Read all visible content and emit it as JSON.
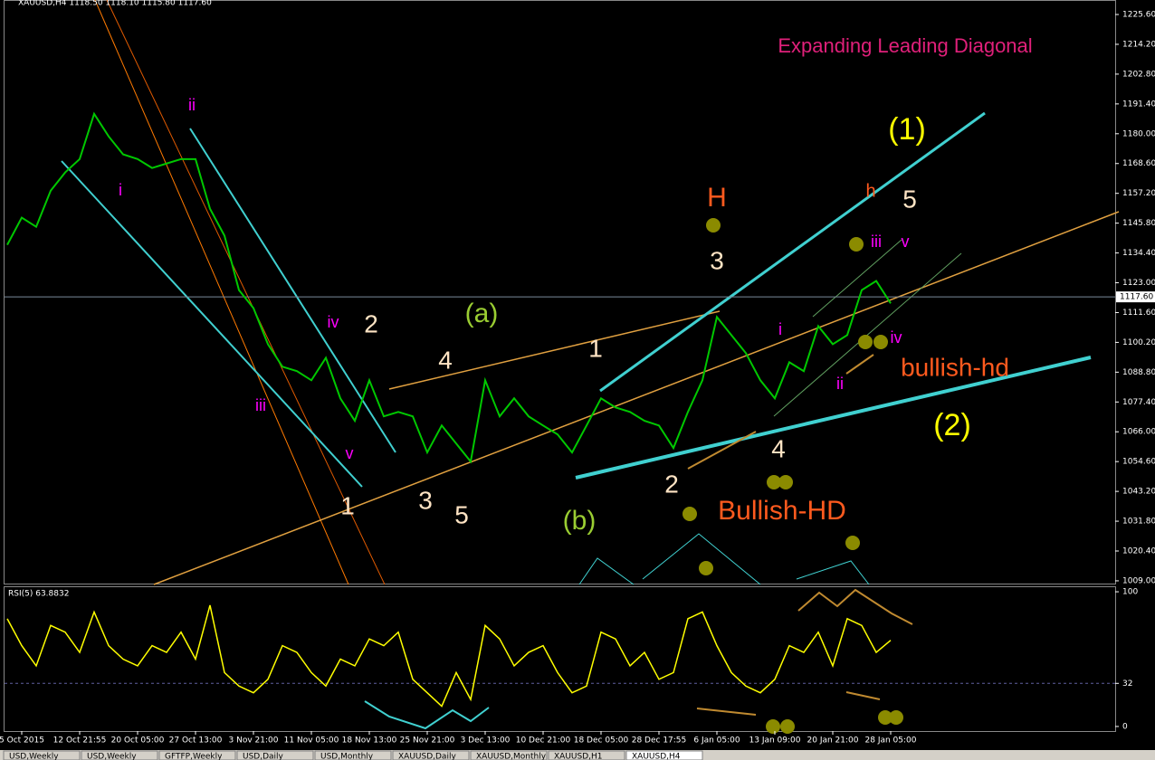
{
  "tabs": [
    "USD,Weekly",
    "USD,Weekly",
    "GFTFP,Weekly",
    "USD,Daily",
    "USD,Monthly",
    "XAUUSD,Daily",
    "XAUUSD,Monthly",
    "XAUUSD,H1",
    "XAUUSD,H4"
  ],
  "chart_data": [
    {
      "type": "line",
      "title": "XAUUSD,H4 1118.50 1118.10 1115.80 1117.60",
      "color": "#00c800",
      "categories": [
        null,
        "5 Oct 2015",
        null,
        null,
        null,
        "12 Oct 21:55",
        null,
        null,
        null,
        "20 Oct 05:00",
        null,
        null,
        null,
        "27 Oct 13:00",
        null,
        null,
        null,
        "3 Nov 21:00",
        null,
        null,
        null,
        "11 Nov 05:00",
        null,
        null,
        null,
        "18 Nov 13:00",
        null,
        null,
        null,
        "25 Nov 21:00",
        null,
        null,
        null,
        "3 Dec 13:00",
        null,
        null,
        null,
        "10 Dec 21:00",
        null,
        null,
        null,
        "18 Dec 05:00",
        null,
        null,
        null,
        "28 Dec 17:55",
        null,
        null,
        null,
        "6 Jan 05:00",
        null,
        null,
        null,
        "13 Jan 09:00",
        null,
        null,
        null,
        "20 Jan 21:00",
        null,
        null,
        null,
        "28 Jan 05:00"
      ],
      "values": [
        1137.5,
        1147.9,
        1144.4,
        1158.2,
        1165.2,
        1170.3,
        1187.6,
        1179.0,
        1172.1,
        1170.3,
        1166.9,
        1168.6,
        1170.3,
        1170.3,
        1151.3,
        1141.0,
        1120.2,
        1113.3,
        1099.5,
        1090.9,
        1089.2,
        1085.7,
        1094.3,
        1078.8,
        1070.2,
        1085.7,
        1071.9,
        1073.6,
        1071.9,
        1058.1,
        1068.4,
        1061.5,
        1054.6,
        1085.7,
        1071.9,
        1078.8,
        1071.9,
        1068.4,
        1065.0,
        1058.1,
        1068.4,
        1078.8,
        1075.3,
        1073.6,
        1070.2,
        1068.4,
        1059.8,
        1073.6,
        1085.7,
        1109.9,
        1103.0,
        1096.1,
        1085.7,
        1078.8,
        1092.6,
        1089.2,
        1106.4,
        1099.5,
        1103.0,
        1120.2,
        1123.7,
        1115.1
      ],
      "ylim": [
        1007.6,
        1230.8
      ],
      "yticks": [
        {
          "value": 1009.0,
          "label": "1009.00"
        },
        {
          "value": 1020.4,
          "label": "1020.40"
        },
        {
          "value": 1031.8,
          "label": "1031.80"
        },
        {
          "value": 1043.2,
          "label": "1043.20"
        },
        {
          "value": 1054.6,
          "label": "1054.60"
        },
        {
          "value": 1066.0,
          "label": "1066.00"
        },
        {
          "value": 1077.4,
          "label": "1077.40"
        },
        {
          "value": 1088.8,
          "label": "1088.80"
        },
        {
          "value": 1100.2,
          "label": "1100.20"
        },
        {
          "value": 1111.6,
          "label": "1111.60"
        },
        {
          "value": 1123.0,
          "label": "1123.00"
        },
        {
          "value": 1134.4,
          "label": "1134.40"
        },
        {
          "value": 1145.8,
          "label": "1145.80"
        },
        {
          "value": 1157.2,
          "label": "1157.20"
        },
        {
          "value": 1168.6,
          "label": "1168.60"
        },
        {
          "value": 1180.0,
          "label": "1180.00"
        },
        {
          "value": 1191.4,
          "label": "1191.40"
        },
        {
          "value": 1202.8,
          "label": "1202.80"
        },
        {
          "value": 1214.2,
          "label": "1214.20"
        },
        {
          "value": 1225.6,
          "label": "1225.60"
        }
      ],
      "last_price": {
        "value": 1117.6,
        "label": "1117.60"
      },
      "annotations": [
        {
          "text": "Expanding Leading Diagonal",
          "color": "#e0207a"
        },
        {
          "text": "(1)",
          "color": "#ffff00"
        },
        {
          "text": "(2)",
          "color": "#ffff00"
        },
        {
          "text": "H",
          "color": "#ff5a1e"
        },
        {
          "text": "h",
          "color": "#ff5a1e"
        },
        {
          "text": "5",
          "color": "#ffe4c4"
        },
        {
          "text": "3",
          "color": "#ffe4c4"
        },
        {
          "text": "iii",
          "color": "#ff00ff"
        },
        {
          "text": "v",
          "color": "#ff00ff"
        },
        {
          "text": "i",
          "color": "#ff00ff"
        },
        {
          "text": "iv",
          "color": "#ff00ff"
        },
        {
          "text": "ii",
          "color": "#ff00ff"
        },
        {
          "text": "bullish-hd",
          "color": "#ff5a1e"
        },
        {
          "text": "4",
          "color": "#ffe4c4"
        },
        {
          "text": "2",
          "color": "#ffe4c4"
        },
        {
          "text": "Bullish-HD",
          "color": "#ff5a1e"
        },
        {
          "text": "(b)",
          "color": "#9acd32"
        },
        {
          "text": "1",
          "color": "#ffe4c4"
        },
        {
          "text": "(a)",
          "color": "#9acd32"
        },
        {
          "text": "4",
          "color": "#ffe4c4"
        },
        {
          "text": "2",
          "color": "#ffe4c4"
        },
        {
          "text": "iv",
          "color": "#ff00ff"
        },
        {
          "text": "ii",
          "color": "#ff00ff"
        },
        {
          "text": "i",
          "color": "#ff00ff"
        },
        {
          "text": "iii",
          "color": "#ff00ff"
        },
        {
          "text": "v",
          "color": "#ff00ff"
        },
        {
          "text": "1",
          "color": "#ffe4c4"
        },
        {
          "text": "3",
          "color": "#ffe4c4"
        },
        {
          "text": "5",
          "color": "#ffe4c4"
        }
      ]
    },
    {
      "type": "line",
      "title": "RSI(5) 63.8832",
      "color": "#ffff00",
      "values": [
        80,
        60,
        45,
        75,
        70,
        55,
        85,
        60,
        50,
        45,
        60,
        55,
        70,
        50,
        90,
        40,
        30,
        25,
        35,
        60,
        55,
        40,
        30,
        50,
        45,
        65,
        60,
        70,
        35,
        25,
        15,
        40,
        20,
        75,
        65,
        45,
        55,
        60,
        40,
        25,
        30,
        70,
        65,
        45,
        55,
        35,
        40,
        80,
        85,
        60,
        40,
        30,
        25,
        35,
        60,
        55,
        70,
        45,
        80,
        75,
        55,
        64
      ],
      "ylim": [
        -3.4,
        103.4
      ],
      "yticks": [
        0,
        32,
        100
      ]
    }
  ]
}
